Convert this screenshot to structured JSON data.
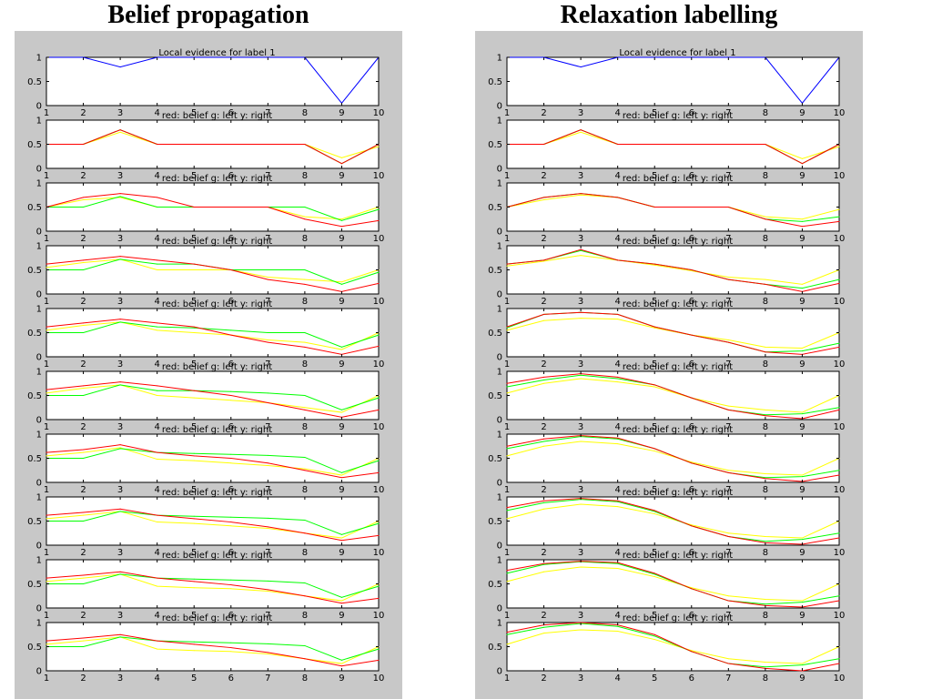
{
  "titles": {
    "left": "Belief propagation",
    "right": "Relaxation labelling"
  },
  "colors": {
    "figure_background": "#c8c8c8",
    "axes_background": "#ffffff",
    "evidence": "#0000ff",
    "belief": "#ff0000",
    "left": "#00ff00",
    "right": "#ffff00"
  },
  "subplot_labels": {
    "evidence_title": "Local evidence for label 1",
    "iteration_title": "red: belief  g: left  y: right"
  },
  "chart_data": [
    {
      "name": "belief-propagation",
      "type": "line",
      "x": [
        1,
        2,
        3,
        4,
        5,
        6,
        7,
        8,
        9,
        10
      ],
      "xticks": [
        "1",
        "2",
        "3",
        "4",
        "5",
        "6",
        "7",
        "8",
        "9",
        "10"
      ],
      "yticks": [
        "0",
        "0.5",
        "1"
      ],
      "ylim": [
        0,
        1
      ],
      "xlim": [
        1,
        10
      ],
      "evidence": [
        1,
        1,
        0.8,
        1,
        1,
        1,
        1,
        1,
        0.05,
        1
      ],
      "iterations": [
        {
          "belief": [
            0.5,
            0.5,
            0.8,
            0.5,
            0.5,
            0.5,
            0.5,
            0.5,
            0.1,
            0.5
          ],
          "left": [
            0.5,
            0.5,
            0.8,
            0.5,
            0.5,
            0.5,
            0.5,
            0.5,
            0.1,
            0.5
          ],
          "right": [
            0.5,
            0.5,
            0.75,
            0.5,
            0.5,
            0.5,
            0.5,
            0.5,
            0.22,
            0.45
          ]
        },
        {
          "belief": [
            0.5,
            0.7,
            0.78,
            0.7,
            0.5,
            0.5,
            0.5,
            0.25,
            0.1,
            0.22
          ],
          "left": [
            0.5,
            0.5,
            0.72,
            0.5,
            0.5,
            0.5,
            0.5,
            0.5,
            0.22,
            0.45
          ],
          "right": [
            0.5,
            0.65,
            0.7,
            0.5,
            0.5,
            0.5,
            0.5,
            0.3,
            0.25,
            0.5
          ]
        },
        {
          "belief": [
            0.62,
            0.7,
            0.78,
            0.7,
            0.62,
            0.5,
            0.3,
            0.2,
            0.05,
            0.22
          ],
          "left": [
            0.5,
            0.5,
            0.72,
            0.62,
            0.62,
            0.5,
            0.5,
            0.5,
            0.2,
            0.45
          ],
          "right": [
            0.55,
            0.65,
            0.72,
            0.5,
            0.5,
            0.5,
            0.35,
            0.3,
            0.25,
            0.5
          ]
        },
        {
          "belief": [
            0.62,
            0.7,
            0.78,
            0.7,
            0.62,
            0.45,
            0.3,
            0.2,
            0.05,
            0.22
          ],
          "left": [
            0.5,
            0.5,
            0.72,
            0.62,
            0.6,
            0.55,
            0.5,
            0.5,
            0.2,
            0.45
          ],
          "right": [
            0.55,
            0.65,
            0.72,
            0.55,
            0.5,
            0.45,
            0.35,
            0.3,
            0.15,
            0.5
          ]
        },
        {
          "belief": [
            0.62,
            0.7,
            0.78,
            0.7,
            0.6,
            0.5,
            0.35,
            0.2,
            0.05,
            0.2
          ],
          "left": [
            0.5,
            0.5,
            0.72,
            0.6,
            0.6,
            0.58,
            0.55,
            0.5,
            0.2,
            0.45
          ],
          "right": [
            0.55,
            0.65,
            0.72,
            0.5,
            0.45,
            0.4,
            0.35,
            0.25,
            0.15,
            0.5
          ]
        },
        {
          "belief": [
            0.62,
            0.68,
            0.78,
            0.62,
            0.55,
            0.5,
            0.4,
            0.25,
            0.1,
            0.2
          ],
          "left": [
            0.5,
            0.5,
            0.7,
            0.62,
            0.6,
            0.58,
            0.56,
            0.52,
            0.2,
            0.45
          ],
          "right": [
            0.55,
            0.62,
            0.72,
            0.48,
            0.45,
            0.4,
            0.35,
            0.28,
            0.15,
            0.5
          ]
        },
        {
          "belief": [
            0.62,
            0.68,
            0.75,
            0.62,
            0.55,
            0.48,
            0.38,
            0.25,
            0.1,
            0.2
          ],
          "left": [
            0.5,
            0.5,
            0.7,
            0.62,
            0.6,
            0.58,
            0.56,
            0.52,
            0.22,
            0.45
          ],
          "right": [
            0.55,
            0.62,
            0.7,
            0.48,
            0.45,
            0.4,
            0.35,
            0.25,
            0.15,
            0.5
          ]
        },
        {
          "belief": [
            0.62,
            0.68,
            0.75,
            0.62,
            0.55,
            0.48,
            0.38,
            0.25,
            0.1,
            0.2
          ],
          "left": [
            0.5,
            0.5,
            0.7,
            0.62,
            0.6,
            0.58,
            0.56,
            0.52,
            0.22,
            0.45
          ],
          "right": [
            0.55,
            0.62,
            0.7,
            0.45,
            0.42,
            0.4,
            0.35,
            0.25,
            0.15,
            0.5
          ]
        },
        {
          "belief": [
            0.62,
            0.68,
            0.75,
            0.62,
            0.55,
            0.48,
            0.38,
            0.25,
            0.1,
            0.22
          ],
          "left": [
            0.5,
            0.5,
            0.7,
            0.62,
            0.6,
            0.58,
            0.56,
            0.52,
            0.22,
            0.45
          ],
          "right": [
            0.55,
            0.62,
            0.7,
            0.45,
            0.42,
            0.4,
            0.35,
            0.25,
            0.15,
            0.5
          ]
        }
      ]
    },
    {
      "name": "relaxation-labelling",
      "type": "line",
      "x": [
        1,
        2,
        3,
        4,
        5,
        6,
        7,
        8,
        9,
        10
      ],
      "xticks": [
        "1",
        "2",
        "3",
        "4",
        "5",
        "6",
        "7",
        "8",
        "9",
        "10"
      ],
      "yticks": [
        "0",
        "0.5",
        "1"
      ],
      "ylim": [
        0,
        1
      ],
      "xlim": [
        1,
        10
      ],
      "evidence": [
        1,
        1,
        0.8,
        1,
        1,
        1,
        1,
        1,
        0.05,
        1
      ],
      "iterations": [
        {
          "belief": [
            0.5,
            0.5,
            0.8,
            0.5,
            0.5,
            0.5,
            0.5,
            0.5,
            0.1,
            0.5
          ],
          "left": [
            0.5,
            0.5,
            0.8,
            0.5,
            0.5,
            0.5,
            0.5,
            0.5,
            0.1,
            0.5
          ],
          "right": [
            0.5,
            0.5,
            0.75,
            0.5,
            0.5,
            0.5,
            0.5,
            0.5,
            0.2,
            0.45
          ]
        },
        {
          "belief": [
            0.5,
            0.7,
            0.78,
            0.7,
            0.5,
            0.5,
            0.5,
            0.25,
            0.1,
            0.2
          ],
          "left": [
            0.5,
            0.7,
            0.78,
            0.7,
            0.5,
            0.5,
            0.5,
            0.25,
            0.2,
            0.3
          ],
          "right": [
            0.5,
            0.65,
            0.75,
            0.7,
            0.5,
            0.5,
            0.5,
            0.3,
            0.25,
            0.45
          ]
        },
        {
          "belief": [
            0.62,
            0.7,
            0.92,
            0.7,
            0.62,
            0.5,
            0.3,
            0.2,
            0.05,
            0.22
          ],
          "left": [
            0.62,
            0.7,
            0.9,
            0.7,
            0.62,
            0.5,
            0.3,
            0.2,
            0.12,
            0.3
          ],
          "right": [
            0.58,
            0.68,
            0.8,
            0.7,
            0.6,
            0.48,
            0.35,
            0.3,
            0.2,
            0.5
          ]
        },
        {
          "belief": [
            0.62,
            0.88,
            0.92,
            0.88,
            0.62,
            0.45,
            0.3,
            0.1,
            0.05,
            0.2
          ],
          "left": [
            0.6,
            0.88,
            0.92,
            0.88,
            0.62,
            0.45,
            0.3,
            0.1,
            0.12,
            0.28
          ],
          "right": [
            0.55,
            0.75,
            0.8,
            0.78,
            0.6,
            0.45,
            0.35,
            0.2,
            0.18,
            0.5
          ]
        },
        {
          "belief": [
            0.75,
            0.88,
            0.95,
            0.88,
            0.72,
            0.45,
            0.2,
            0.08,
            0.02,
            0.2
          ],
          "left": [
            0.68,
            0.82,
            0.92,
            0.85,
            0.72,
            0.45,
            0.2,
            0.1,
            0.12,
            0.25
          ],
          "right": [
            0.55,
            0.75,
            0.85,
            0.78,
            0.68,
            0.45,
            0.28,
            0.2,
            0.15,
            0.5
          ]
        },
        {
          "belief": [
            0.75,
            0.9,
            0.97,
            0.92,
            0.7,
            0.4,
            0.2,
            0.08,
            0.02,
            0.15
          ],
          "left": [
            0.7,
            0.85,
            0.95,
            0.9,
            0.7,
            0.4,
            0.2,
            0.1,
            0.12,
            0.25
          ],
          "right": [
            0.55,
            0.75,
            0.85,
            0.8,
            0.65,
            0.42,
            0.25,
            0.18,
            0.15,
            0.5
          ]
        },
        {
          "belief": [
            0.78,
            0.92,
            0.97,
            0.92,
            0.72,
            0.4,
            0.18,
            0.05,
            0.02,
            0.15
          ],
          "left": [
            0.72,
            0.88,
            0.95,
            0.9,
            0.7,
            0.4,
            0.18,
            0.08,
            0.12,
            0.25
          ],
          "right": [
            0.55,
            0.75,
            0.85,
            0.8,
            0.65,
            0.42,
            0.25,
            0.18,
            0.15,
            0.5
          ]
        },
        {
          "belief": [
            0.78,
            0.92,
            0.97,
            0.94,
            0.72,
            0.4,
            0.15,
            0.05,
            0.02,
            0.15
          ],
          "left": [
            0.72,
            0.9,
            0.96,
            0.92,
            0.7,
            0.4,
            0.15,
            0.08,
            0.12,
            0.25
          ],
          "right": [
            0.55,
            0.75,
            0.85,
            0.82,
            0.65,
            0.42,
            0.25,
            0.18,
            0.15,
            0.5
          ]
        },
        {
          "belief": [
            0.8,
            0.95,
            1.0,
            0.95,
            0.75,
            0.4,
            0.15,
            0.05,
            0.0,
            0.15
          ],
          "left": [
            0.75,
            0.9,
            0.98,
            0.92,
            0.72,
            0.4,
            0.15,
            0.08,
            0.12,
            0.25
          ],
          "right": [
            0.55,
            0.78,
            0.85,
            0.82,
            0.65,
            0.42,
            0.25,
            0.18,
            0.15,
            0.5
          ]
        }
      ]
    }
  ]
}
